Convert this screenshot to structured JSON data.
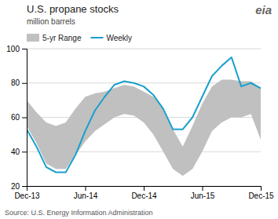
{
  "chart_data": {
    "type": "line",
    "title": "U.S. propane stocks",
    "subtitle": "million barrels",
    "annotations": [
      "Source: U.S. Energy Information Administration",
      "eia"
    ],
    "x": [
      0,
      1,
      2,
      3,
      4,
      5,
      6,
      7,
      8,
      9,
      10,
      11,
      12,
      13,
      14,
      15,
      16,
      17,
      18,
      19,
      20,
      21,
      22,
      23,
      24
    ],
    "series": [
      {
        "name": "5-yr Range",
        "type": "band",
        "color": "#c0c0c0",
        "lower": [
          55,
          45,
          33,
          30,
          30,
          38,
          46,
          52,
          56,
          60,
          62,
          61,
          57,
          50,
          40,
          30,
          26,
          30,
          40,
          52,
          57,
          60,
          60,
          62,
          47
        ],
        "upper": [
          70,
          63,
          57,
          55,
          57,
          65,
          72,
          74,
          75,
          77,
          79,
          78,
          75,
          72,
          65,
          53,
          43,
          55,
          68,
          78,
          82,
          82,
          81,
          81,
          77
        ]
      },
      {
        "name": "Weekly",
        "type": "line",
        "color": "#1aa0cc",
        "values": [
          53,
          43,
          31,
          28,
          28,
          38,
          52,
          64,
          72,
          79,
          81,
          80,
          78,
          73,
          65,
          53,
          53,
          60,
          72,
          84,
          90,
          95,
          78,
          80,
          77
        ]
      }
    ],
    "xlim": [
      0,
      24
    ],
    "xticks": [
      {
        "value": 0,
        "label": "Dec-13"
      },
      {
        "value": 6,
        "label": "Jun-14"
      },
      {
        "value": 12,
        "label": "Dec-14"
      },
      {
        "value": 18,
        "label": "Jun-15"
      },
      {
        "value": 24,
        "label": "Dec-15"
      }
    ],
    "ylim": [
      20,
      100
    ],
    "yticks": [
      20,
      40,
      60,
      80,
      100
    ],
    "grid": true,
    "legend": "top-left"
  }
}
